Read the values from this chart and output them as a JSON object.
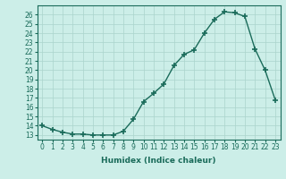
{
  "x": [
    0,
    1,
    2,
    3,
    4,
    5,
    6,
    7,
    8,
    9,
    10,
    11,
    12,
    13,
    14,
    15,
    16,
    17,
    18,
    19,
    20,
    21,
    22,
    23
  ],
  "y": [
    14.0,
    13.6,
    13.3,
    13.1,
    13.1,
    13.0,
    13.0,
    13.0,
    13.4,
    14.7,
    16.6,
    17.5,
    18.5,
    20.5,
    21.7,
    22.2,
    24.0,
    25.5,
    26.3,
    26.2,
    25.8,
    22.3,
    20.0,
    16.8
  ],
  "xlabel": "Humidex (Indice chaleur)",
  "xlim": [
    -0.5,
    23.5
  ],
  "ylim": [
    12.5,
    27.0
  ],
  "yticks": [
    13,
    14,
    15,
    16,
    17,
    18,
    19,
    20,
    21,
    22,
    23,
    24,
    25,
    26
  ],
  "xticks": [
    0,
    1,
    2,
    3,
    4,
    5,
    6,
    7,
    8,
    9,
    10,
    11,
    12,
    13,
    14,
    15,
    16,
    17,
    18,
    19,
    20,
    21,
    22,
    23
  ],
  "line_color": "#1a6b5a",
  "marker": "+",
  "marker_size": 4,
  "bg_color": "#cceee8",
  "grid_color": "#aad4cc",
  "tick_fontsize": 5.5,
  "label_fontsize": 6.5,
  "linewidth": 1.0
}
